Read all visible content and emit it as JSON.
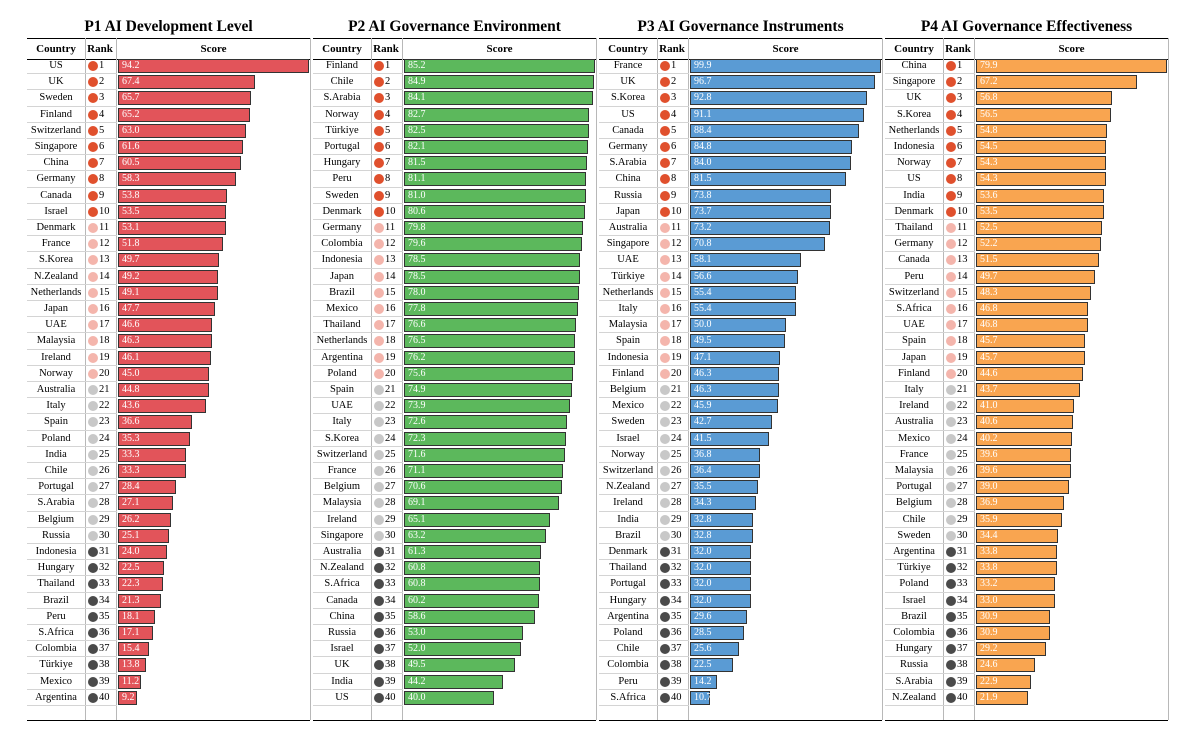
{
  "headers": {
    "country": "Country",
    "rank": "Rank",
    "score": "Score"
  },
  "rank_colors": {
    "top10": "#e0502d",
    "mid10": "#f4b5ac",
    "low10": "#c8c8c8",
    "bottom10": "#4a4a4a"
  },
  "chart_data": [
    {
      "type": "bar",
      "title": "P1 AI Development Level",
      "bar_color": "#e2545a",
      "xlim": [
        0,
        94.2
      ],
      "categories": [
        "US",
        "UK",
        "Sweden",
        "Finland",
        "Switzerland",
        "Singapore",
        "China",
        "Germany",
        "Canada",
        "Israel",
        "Denmark",
        "France",
        "S.Korea",
        "N.Zealand",
        "Netherlands",
        "Japan",
        "UAE",
        "Malaysia",
        "Ireland",
        "Norway",
        "Australia",
        "Italy",
        "Spain",
        "Poland",
        "India",
        "Chile",
        "Portugal",
        "S.Arabia",
        "Belgium",
        "Russia",
        "Indonesia",
        "Hungary",
        "Thailand",
        "Brazil",
        "Peru",
        "S.Africa",
        "Colombia",
        "Türkiye",
        "Mexico",
        "Argentina"
      ],
      "values": [
        "94.2",
        "67.4",
        "65.7",
        "65.2",
        "63.0",
        "61.6",
        "60.5",
        "58.3",
        "53.8",
        "53.5",
        "53.1",
        "51.8",
        "49.7",
        "49.2",
        "49.1",
        "47.7",
        "46.6",
        "46.3",
        "46.1",
        "45.0",
        "44.8",
        "43.6",
        "36.6",
        "35.3",
        "33.3",
        "33.3",
        "28.4",
        "27.1",
        "26.2",
        "25.1",
        "24.0",
        "22.5",
        "22.3",
        "21.3",
        "18.1",
        "17.1",
        "15.4",
        "13.8",
        "11.2",
        "9.2"
      ]
    },
    {
      "type": "bar",
      "title": "P2 AI Governance Environment",
      "bar_color": "#5cb85c",
      "xlim": [
        0,
        85.2
      ],
      "categories": [
        "Finland",
        "Chile",
        "S.Arabia",
        "Norway",
        "Türkiye",
        "Portugal",
        "Hungary",
        "Peru",
        "Sweden",
        "Denmark",
        "Germany",
        "Colombia",
        "Indonesia",
        "Japan",
        "Brazil",
        "Mexico",
        "Thailand",
        "Netherlands",
        "Argentina",
        "Poland",
        "Spain",
        "UAE",
        "Italy",
        "S.Korea",
        "Switzerland",
        "France",
        "Belgium",
        "Malaysia",
        "Ireland",
        "Singapore",
        "Australia",
        "N.Zealand",
        "S.Africa",
        "Canada",
        "China",
        "Russia",
        "Israel",
        "UK",
        "India",
        "US"
      ],
      "values": [
        "85.2",
        "84.9",
        "84.1",
        "82.7",
        "82.5",
        "82.1",
        "81.5",
        "81.1",
        "81.0",
        "80.6",
        "79.8",
        "79.6",
        "78.5",
        "78.5",
        "78.0",
        "77.8",
        "76.6",
        "76.5",
        "76.2",
        "75.6",
        "74.9",
        "73.9",
        "72.6",
        "72.3",
        "71.6",
        "71.1",
        "70.6",
        "69.1",
        "65.1",
        "63.2",
        "61.3",
        "60.8",
        "60.8",
        "60.2",
        "58.6",
        "53.0",
        "52.0",
        "49.5",
        "44.2",
        "40.0"
      ]
    },
    {
      "type": "bar",
      "title": "P3 AI Governance Instruments",
      "bar_color": "#5a9bd4",
      "xlim": [
        0,
        99.9
      ],
      "categories": [
        "France",
        "UK",
        "S.Korea",
        "US",
        "Canada",
        "Germany",
        "S.Arabia",
        "China",
        "Russia",
        "Japan",
        "Australia",
        "Singapore",
        "UAE",
        "Türkiye",
        "Netherlands",
        "Italy",
        "Malaysia",
        "Spain",
        "Indonesia",
        "Finland",
        "Belgium",
        "Mexico",
        "Sweden",
        "Israel",
        "Norway",
        "Switzerland",
        "N.Zealand",
        "Ireland",
        "India",
        "Brazil",
        "Denmark",
        "Thailand",
        "Portugal",
        "Hungary",
        "Argentina",
        "Poland",
        "Chile",
        "Colombia",
        "Peru",
        "S.Africa"
      ],
      "values": [
        "99.9",
        "96.7",
        "92.8",
        "91.1",
        "88.4",
        "84.8",
        "84.0",
        "81.5",
        "73.8",
        "73.7",
        "73.2",
        "70.8",
        "58.1",
        "56.6",
        "55.4",
        "55.4",
        "50.0",
        "49.5",
        "47.1",
        "46.3",
        "46.3",
        "45.9",
        "42.7",
        "41.5",
        "36.8",
        "36.4",
        "35.5",
        "34.3",
        "32.8",
        "32.8",
        "32.0",
        "32.0",
        "32.0",
        "32.0",
        "29.6",
        "28.5",
        "25.6",
        "22.5",
        "14.2",
        "10.7"
      ]
    },
    {
      "type": "bar",
      "title": "P4 AI Governance Effectiveness",
      "bar_color": "#f9a550",
      "xlim": [
        0,
        79.9
      ],
      "categories": [
        "China",
        "Singapore",
        "UK",
        "S.Korea",
        "Netherlands",
        "Indonesia",
        "Norway",
        "US",
        "India",
        "Denmark",
        "Thailand",
        "Germany",
        "Canada",
        "Peru",
        "Switzerland",
        "S.Africa",
        "UAE",
        "Spain",
        "Japan",
        "Finland",
        "Italy",
        "Ireland",
        "Australia",
        "Mexico",
        "France",
        "Malaysia",
        "Portugal",
        "Belgium",
        "Chile",
        "Sweden",
        "Argentina",
        "Türkiye",
        "Poland",
        "Israel",
        "Brazil",
        "Colombia",
        "Hungary",
        "Russia",
        "S.Arabia",
        "N.Zealand"
      ],
      "values": [
        "79.9",
        "67.2",
        "56.8",
        "56.5",
        "54.8",
        "54.5",
        "54.3",
        "54.3",
        "53.6",
        "53.5",
        "52.5",
        "52.2",
        "51.5",
        "49.7",
        "48.3",
        "46.8",
        "46.8",
        "45.7",
        "45.7",
        "44.6",
        "43.7",
        "41.0",
        "40.6",
        "40.2",
        "39.6",
        "39.6",
        "39.0",
        "36.9",
        "35.9",
        "34.4",
        "33.8",
        "33.8",
        "33.2",
        "33.0",
        "30.9",
        "30.9",
        "29.2",
        "24.6",
        "22.9",
        "21.9"
      ]
    }
  ]
}
